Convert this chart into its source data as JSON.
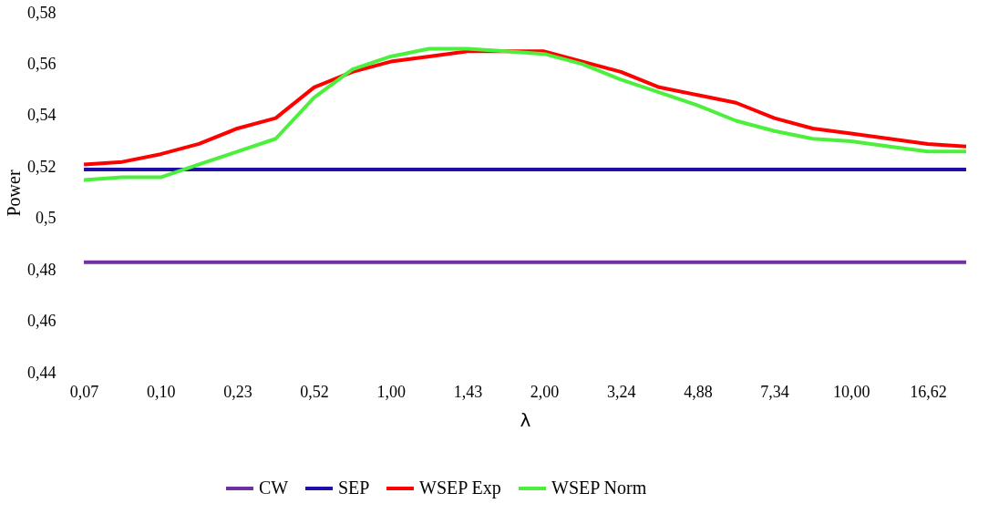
{
  "chart_data": {
    "type": "line",
    "xlabel": "λ",
    "ylabel": "Power",
    "categories": [
      "0,07",
      null,
      "0,10",
      null,
      "0,23",
      null,
      "0,52",
      null,
      "1,00",
      null,
      "1,43",
      null,
      "2,00",
      null,
      "3,24",
      null,
      "4,88",
      null,
      "7,34",
      null,
      "10,00",
      null,
      "16,62",
      null
    ],
    "series": [
      {
        "name": "CW",
        "color": "#7030a0",
        "values": [
          0.483,
          0.483,
          0.483,
          0.483,
          0.483,
          0.483,
          0.483,
          0.483,
          0.483,
          0.483,
          0.483,
          0.483,
          0.483,
          0.483,
          0.483,
          0.483,
          0.483,
          0.483,
          0.483,
          0.483,
          0.483,
          0.483,
          0.483,
          0.483
        ]
      },
      {
        "name": "SEP",
        "color": "#1f0fa8",
        "values": [
          0.519,
          0.519,
          0.519,
          0.519,
          0.519,
          0.519,
          0.519,
          0.519,
          0.519,
          0.519,
          0.519,
          0.519,
          0.519,
          0.519,
          0.519,
          0.519,
          0.519,
          0.519,
          0.519,
          0.519,
          0.519,
          0.519,
          0.519,
          0.519
        ]
      },
      {
        "name": "WSEP Exp",
        "color": "#ff0000",
        "values": [
          0.521,
          0.522,
          0.525,
          0.529,
          0.535,
          0.539,
          0.551,
          0.557,
          0.561,
          0.563,
          0.565,
          0.565,
          0.565,
          0.561,
          0.557,
          0.551,
          0.548,
          0.545,
          0.539,
          0.535,
          0.533,
          0.531,
          0.529,
          0.528
        ]
      },
      {
        "name": "WSEP Norm",
        "color": "#4cf03c",
        "values": [
          0.515,
          0.516,
          0.516,
          0.521,
          0.526,
          0.531,
          0.547,
          0.558,
          0.563,
          0.566,
          0.566,
          0.565,
          0.564,
          0.56,
          0.554,
          0.549,
          0.544,
          0.538,
          0.534,
          0.531,
          0.53,
          0.528,
          0.526,
          0.526
        ]
      }
    ],
    "ylim": [
      0.44,
      0.58
    ],
    "yticks": [
      {
        "value": 0.44,
        "label": "0,44"
      },
      {
        "value": 0.46,
        "label": "0,46"
      },
      {
        "value": 0.48,
        "label": "0,48"
      },
      {
        "value": 0.5,
        "label": "0,5"
      },
      {
        "value": 0.52,
        "label": "0,52"
      },
      {
        "value": 0.54,
        "label": "0,54"
      },
      {
        "value": 0.56,
        "label": "0,56"
      },
      {
        "value": 0.58,
        "label": "0,58"
      }
    ],
    "grid": false,
    "legend": "bottom",
    "marker": "none",
    "line_style": "solid"
  }
}
